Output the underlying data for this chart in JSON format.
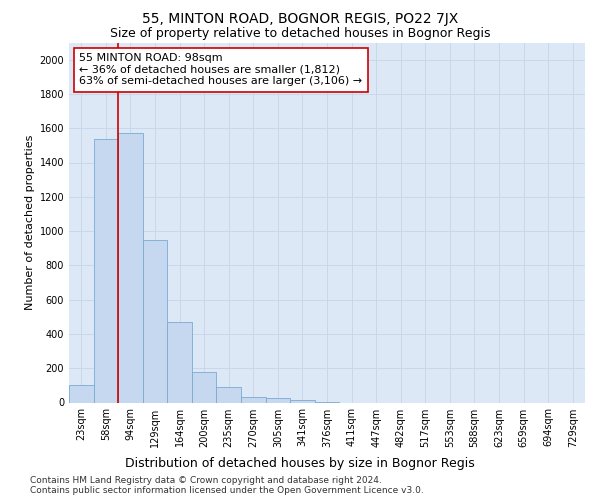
{
  "title": "55, MINTON ROAD, BOGNOR REGIS, PO22 7JX",
  "subtitle": "Size of property relative to detached houses in Bognor Regis",
  "xlabel": "Distribution of detached houses by size in Bognor Regis",
  "ylabel": "Number of detached properties",
  "footer_line1": "Contains HM Land Registry data © Crown copyright and database right 2024.",
  "footer_line2": "Contains public sector information licensed under the Open Government Licence v3.0.",
  "categories": [
    "23sqm",
    "58sqm",
    "94sqm",
    "129sqm",
    "164sqm",
    "200sqm",
    "235sqm",
    "270sqm",
    "305sqm",
    "341sqm",
    "376sqm",
    "411sqm",
    "447sqm",
    "482sqm",
    "517sqm",
    "553sqm",
    "588sqm",
    "623sqm",
    "659sqm",
    "694sqm",
    "729sqm"
  ],
  "values": [
    100,
    1540,
    1570,
    950,
    470,
    180,
    90,
    35,
    25,
    15,
    5,
    0,
    0,
    0,
    0,
    0,
    0,
    0,
    0,
    0,
    0
  ],
  "bar_color": "#c5d8f0",
  "bar_edge_color": "#7baad4",
  "property_line_color": "#cc0000",
  "property_line_x": 1.5,
  "annotation_text": "55 MINTON ROAD: 98sqm\n← 36% of detached houses are smaller (1,812)\n63% of semi-detached houses are larger (3,106) →",
  "annotation_box_facecolor": "#ffffff",
  "annotation_box_edgecolor": "#cc0000",
  "ylim": [
    0,
    2100
  ],
  "yticks": [
    0,
    200,
    400,
    600,
    800,
    1000,
    1200,
    1400,
    1600,
    1800,
    2000
  ],
  "grid_color": "#c8d8ea",
  "background_color": "#dce8f5",
  "title_fontsize": 10,
  "subtitle_fontsize": 9,
  "annotation_fontsize": 8,
  "ylabel_fontsize": 8,
  "xlabel_fontsize": 9,
  "tick_fontsize": 7,
  "footer_fontsize": 6.5
}
